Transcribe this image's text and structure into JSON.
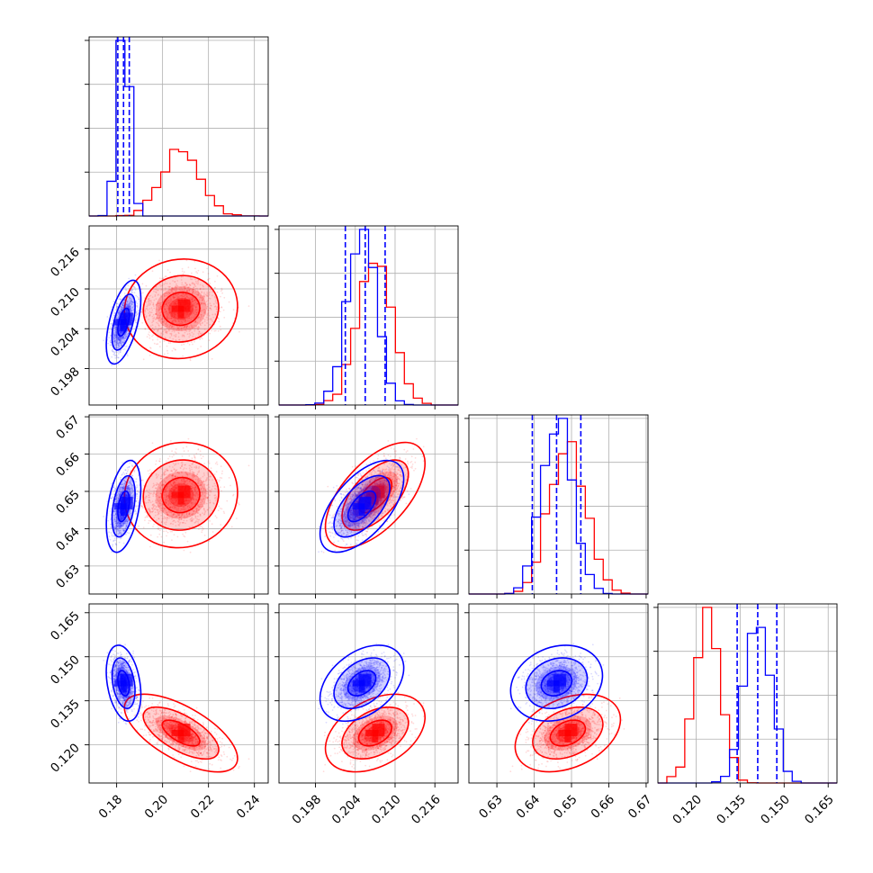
{
  "chart_data": {
    "type": "corner",
    "title": "",
    "grid": true,
    "legend": "none",
    "colors": {
      "blue": "#0000ff",
      "red": "#ff0000"
    },
    "parameters": [
      {
        "index": 0,
        "xlim": [
          0.168,
          0.246
        ],
        "ticks": [
          0.18,
          0.2,
          0.22,
          0.24
        ],
        "tick_labels": [
          "0.18",
          "0.20",
          "0.22",
          "0.24"
        ]
      },
      {
        "index": 1,
        "xlim": [
          0.1925,
          0.2195
        ],
        "ticks": [
          0.198,
          0.204,
          0.21,
          0.216
        ],
        "tick_labels": [
          "0.198",
          "0.204",
          "0.210",
          "0.216"
        ]
      },
      {
        "index": 2,
        "xlim": [
          0.6225,
          0.6705
        ],
        "ticks": [
          0.63,
          0.64,
          0.65,
          0.66,
          0.67
        ],
        "tick_labels": [
          "0.63",
          "0.64",
          "0.65",
          "0.66",
          "0.67"
        ]
      },
      {
        "index": 3,
        "xlim": [
          0.107,
          0.168
        ],
        "ticks": [
          0.12,
          0.135,
          0.15,
          0.165
        ],
        "tick_labels": [
          "0.120",
          "0.135",
          "0.150",
          "0.165"
        ]
      }
    ],
    "series": [
      {
        "color": "#0000ff",
        "mean": [
          0.183,
          0.205,
          0.646,
          0.141
        ],
        "std": [
          0.0025,
          0.0021,
          0.0041,
          0.0043
        ],
        "corr": [
          [
            1,
            0.55,
            0.4,
            -0.3
          ],
          [
            0.55,
            1,
            0.6,
            0.4
          ],
          [
            0.4,
            0.6,
            1,
            0.2
          ],
          [
            -0.3,
            0.4,
            0.2,
            1
          ]
        ],
        "quantiles": [
          [
            0.1805,
            0.183,
            0.1855
          ],
          [
            0.2025,
            0.2055,
            0.2085
          ],
          [
            0.6395,
            0.646,
            0.6525
          ],
          [
            0.134,
            0.141,
            0.1475
          ]
        ]
      },
      {
        "color": "#ff0000",
        "mean": [
          0.208,
          0.207,
          0.649,
          0.124
        ],
        "std": [
          0.0082,
          0.0025,
          0.0047,
          0.0044
        ],
        "corr": [
          [
            1,
            0.05,
            0.05,
            -0.65
          ],
          [
            0.05,
            1,
            0.6,
            0.4
          ],
          [
            0.05,
            0.6,
            1,
            0.35
          ],
          [
            -0.65,
            0.4,
            0.35,
            1
          ]
        ],
        "quantiles": null
      }
    ]
  }
}
